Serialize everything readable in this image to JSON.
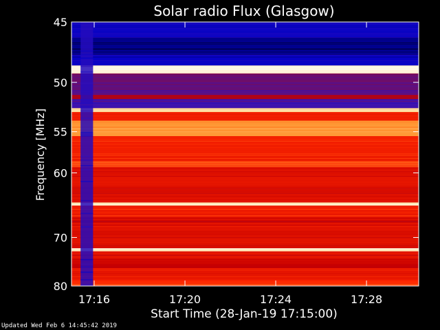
{
  "chart_data": {
    "type": "heatmap",
    "title": "Solar radio Flux (Glasgow)",
    "xlabel": "Start Time (28-Jan-19 17:15:00)",
    "ylabel": "Frequency [MHz]",
    "x_unit": "minutes after 17:15:00",
    "xlim": [
      0.0,
      15.3
    ],
    "ylim": [
      80,
      45
    ],
    "x_ticks": [
      {
        "label": "17:16",
        "value": 1.0
      },
      {
        "label": "17:20",
        "value": 5.0
      },
      {
        "label": "17:24",
        "value": 9.0
      },
      {
        "label": "17:28",
        "value": 13.0
      }
    ],
    "y_ticks": [
      {
        "label": "45",
        "value": 45
      },
      {
        "label": "50",
        "value": 50
      },
      {
        "label": "55",
        "value": 55
      },
      {
        "label": "60",
        "value": 60
      },
      {
        "label": "70",
        "value": 70
      },
      {
        "label": "80",
        "value": 80
      }
    ],
    "colormap": [
      "#000000",
      "#0000c8",
      "#3c14b4",
      "#8c0a3c",
      "#c80000",
      "#ff2800",
      "#ff9632",
      "#ffe6aa",
      "#ffffff"
    ],
    "frequency_bands": [
      {
        "from": 45.0,
        "to": 46.2,
        "level": 0.15
      },
      {
        "from": 46.2,
        "to": 47.6,
        "level": 0.08
      },
      {
        "from": 47.6,
        "to": 48.5,
        "level": 0.14
      },
      {
        "from": 48.5,
        "to": 49.2,
        "level": 0.95
      },
      {
        "from": 49.2,
        "to": 50.0,
        "level": 0.33
      },
      {
        "from": 50.0,
        "to": 51.2,
        "level": 0.3
      },
      {
        "from": 51.2,
        "to": 51.6,
        "level": 0.45
      },
      {
        "from": 51.6,
        "to": 52.5,
        "level": 0.26
      },
      {
        "from": 52.5,
        "to": 52.9,
        "level": 0.85
      },
      {
        "from": 52.9,
        "to": 53.8,
        "level": 0.6
      },
      {
        "from": 53.8,
        "to": 55.5,
        "level": 0.75
      },
      {
        "from": 55.5,
        "to": 58.5,
        "level": 0.6
      },
      {
        "from": 58.5,
        "to": 59.2,
        "level": 0.68
      },
      {
        "from": 59.2,
        "to": 64.2,
        "level": 0.55
      },
      {
        "from": 64.2,
        "to": 64.7,
        "level": 0.9
      },
      {
        "from": 64.7,
        "to": 66.5,
        "level": 0.6
      },
      {
        "from": 66.5,
        "to": 67.5,
        "level": 0.52
      },
      {
        "from": 67.5,
        "to": 72.0,
        "level": 0.55
      },
      {
        "from": 72.0,
        "to": 72.6,
        "level": 0.92
      },
      {
        "from": 72.6,
        "to": 74.0,
        "level": 0.55
      },
      {
        "from": 74.0,
        "to": 76.0,
        "level": 0.5
      },
      {
        "from": 76.0,
        "to": 78.5,
        "level": 0.57
      },
      {
        "from": 78.5,
        "to": 79.5,
        "level": 0.62
      },
      {
        "from": 79.5,
        "to": 80.0,
        "level": 0.65
      }
    ],
    "quiet_interval": {
      "from": 0.4,
      "to": 0.95,
      "level": 0.2
    }
  },
  "footer": "Updated Wed Feb  6 14:45:42 2019"
}
